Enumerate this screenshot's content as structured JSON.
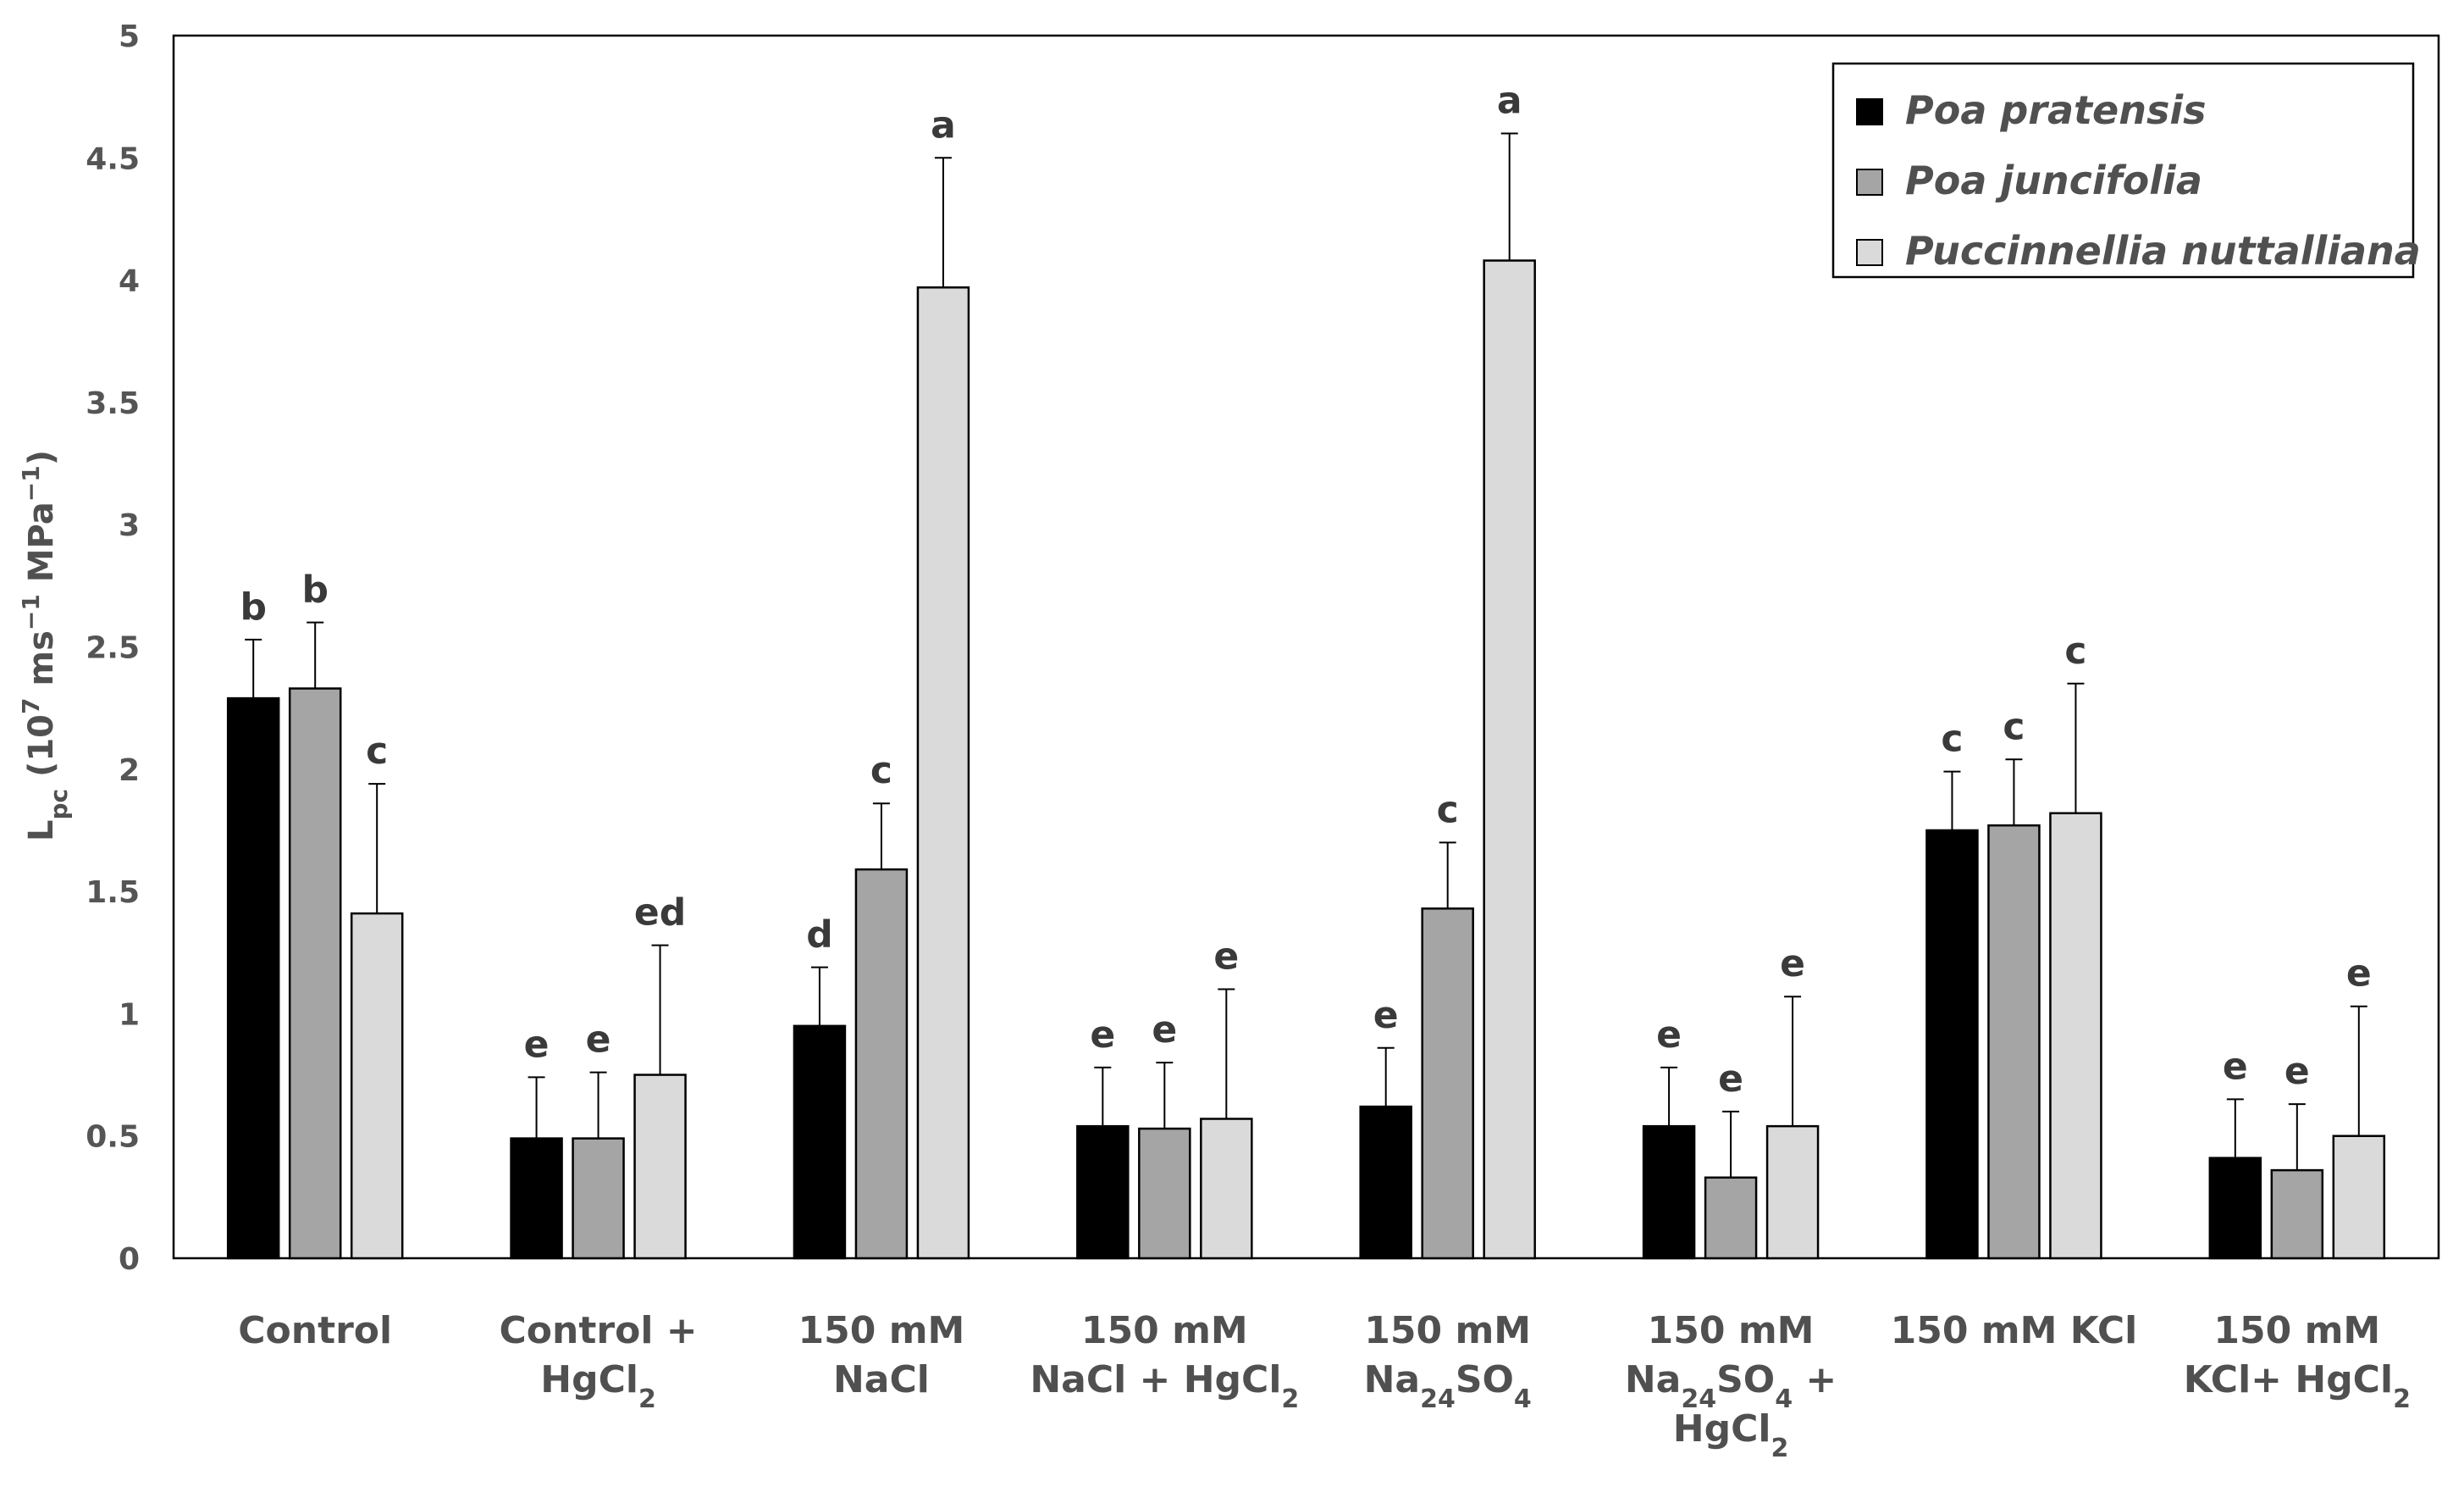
{
  "chart_data": {
    "type": "bar",
    "title": "",
    "xlabel": "",
    "ylabel": "Lpc (10^7 ms^-1 MPa^-1)",
    "ylabel_parts": {
      "main": "L",
      "main_sub": "pc",
      "open": " (10",
      "exp1": "7",
      "mid": " ms",
      "exp2": "−1",
      "mid2": " MPa",
      "exp3": "−1",
      "close": ")"
    },
    "ylim": [
      0,
      5
    ],
    "yticks": [
      "0",
      "0.5",
      "1",
      "1.5",
      "2",
      "2.5",
      "3",
      "3.5",
      "4",
      "4.5",
      "5"
    ],
    "grid": false,
    "legend_position": "top-right",
    "categories": [
      {
        "lines": [
          [
            {
              "t": "Control"
            }
          ]
        ]
      },
      {
        "lines": [
          [
            {
              "t": "Control +"
            }
          ],
          [
            {
              "t": "HgCl"
            },
            {
              "t": "2",
              "sub": true
            }
          ]
        ]
      },
      {
        "lines": [
          [
            {
              "t": "150 mM"
            }
          ],
          [
            {
              "t": "NaCl"
            }
          ]
        ]
      },
      {
        "lines": [
          [
            {
              "t": "150 mM"
            }
          ],
          [
            {
              "t": "NaCl + HgCl"
            },
            {
              "t": "2",
              "sub": true
            }
          ]
        ]
      },
      {
        "lines": [
          [
            {
              "t": "150 mM"
            }
          ],
          [
            {
              "t": "Na"
            },
            {
              "t": "24",
              "sub": true
            },
            {
              "t": "SO"
            },
            {
              "t": "4",
              "sub": true
            }
          ]
        ]
      },
      {
        "lines": [
          [
            {
              "t": "150 mM"
            }
          ],
          [
            {
              "t": "Na"
            },
            {
              "t": "24",
              "sub": true
            },
            {
              "t": "SO"
            },
            {
              "t": "4",
              "sub": true
            },
            {
              "t": " +"
            }
          ],
          [
            {
              "t": "HgCl"
            },
            {
              "t": "2",
              "sub": true
            }
          ]
        ]
      },
      {
        "lines": [
          [
            {
              "t": "150 mM KCl"
            }
          ]
        ]
      },
      {
        "lines": [
          [
            {
              "t": "150 mM"
            }
          ],
          [
            {
              "t": "KCl+ HgCl"
            },
            {
              "t": "2",
              "sub": true
            }
          ]
        ]
      }
    ],
    "series": [
      {
        "name": "Poa pratensis",
        "color": "#000000",
        "values": [
          2.29,
          0.49,
          0.95,
          0.54,
          0.62,
          0.54,
          1.75,
          0.41
        ],
        "errors": [
          0.24,
          0.25,
          0.24,
          0.24,
          0.24,
          0.24,
          0.24,
          0.24
        ],
        "letters": [
          "b",
          "e",
          "d",
          "e",
          "e",
          "e",
          "c",
          "e"
        ]
      },
      {
        "name": "Poa juncifolia",
        "color": "#a5a5a5",
        "values": [
          2.33,
          0.49,
          1.59,
          0.53,
          1.43,
          0.33,
          1.77,
          0.36
        ],
        "errors": [
          0.27,
          0.27,
          0.27,
          0.27,
          0.27,
          0.27,
          0.27,
          0.27
        ],
        "letters": [
          "b",
          "e",
          "c",
          "e",
          "c",
          "e",
          "c",
          "e"
        ]
      },
      {
        "name": "Puccinnellia nuttalliana",
        "color": "#dadada",
        "values": [
          1.41,
          0.75,
          3.97,
          0.57,
          4.08,
          0.54,
          1.82,
          0.5
        ],
        "errors": [
          0.53,
          0.53,
          0.53,
          0.53,
          0.52,
          0.53,
          0.53,
          0.53
        ],
        "letters": [
          "c",
          "ed",
          "a",
          "e",
          "a",
          "e",
          "c",
          "e"
        ]
      }
    ]
  }
}
